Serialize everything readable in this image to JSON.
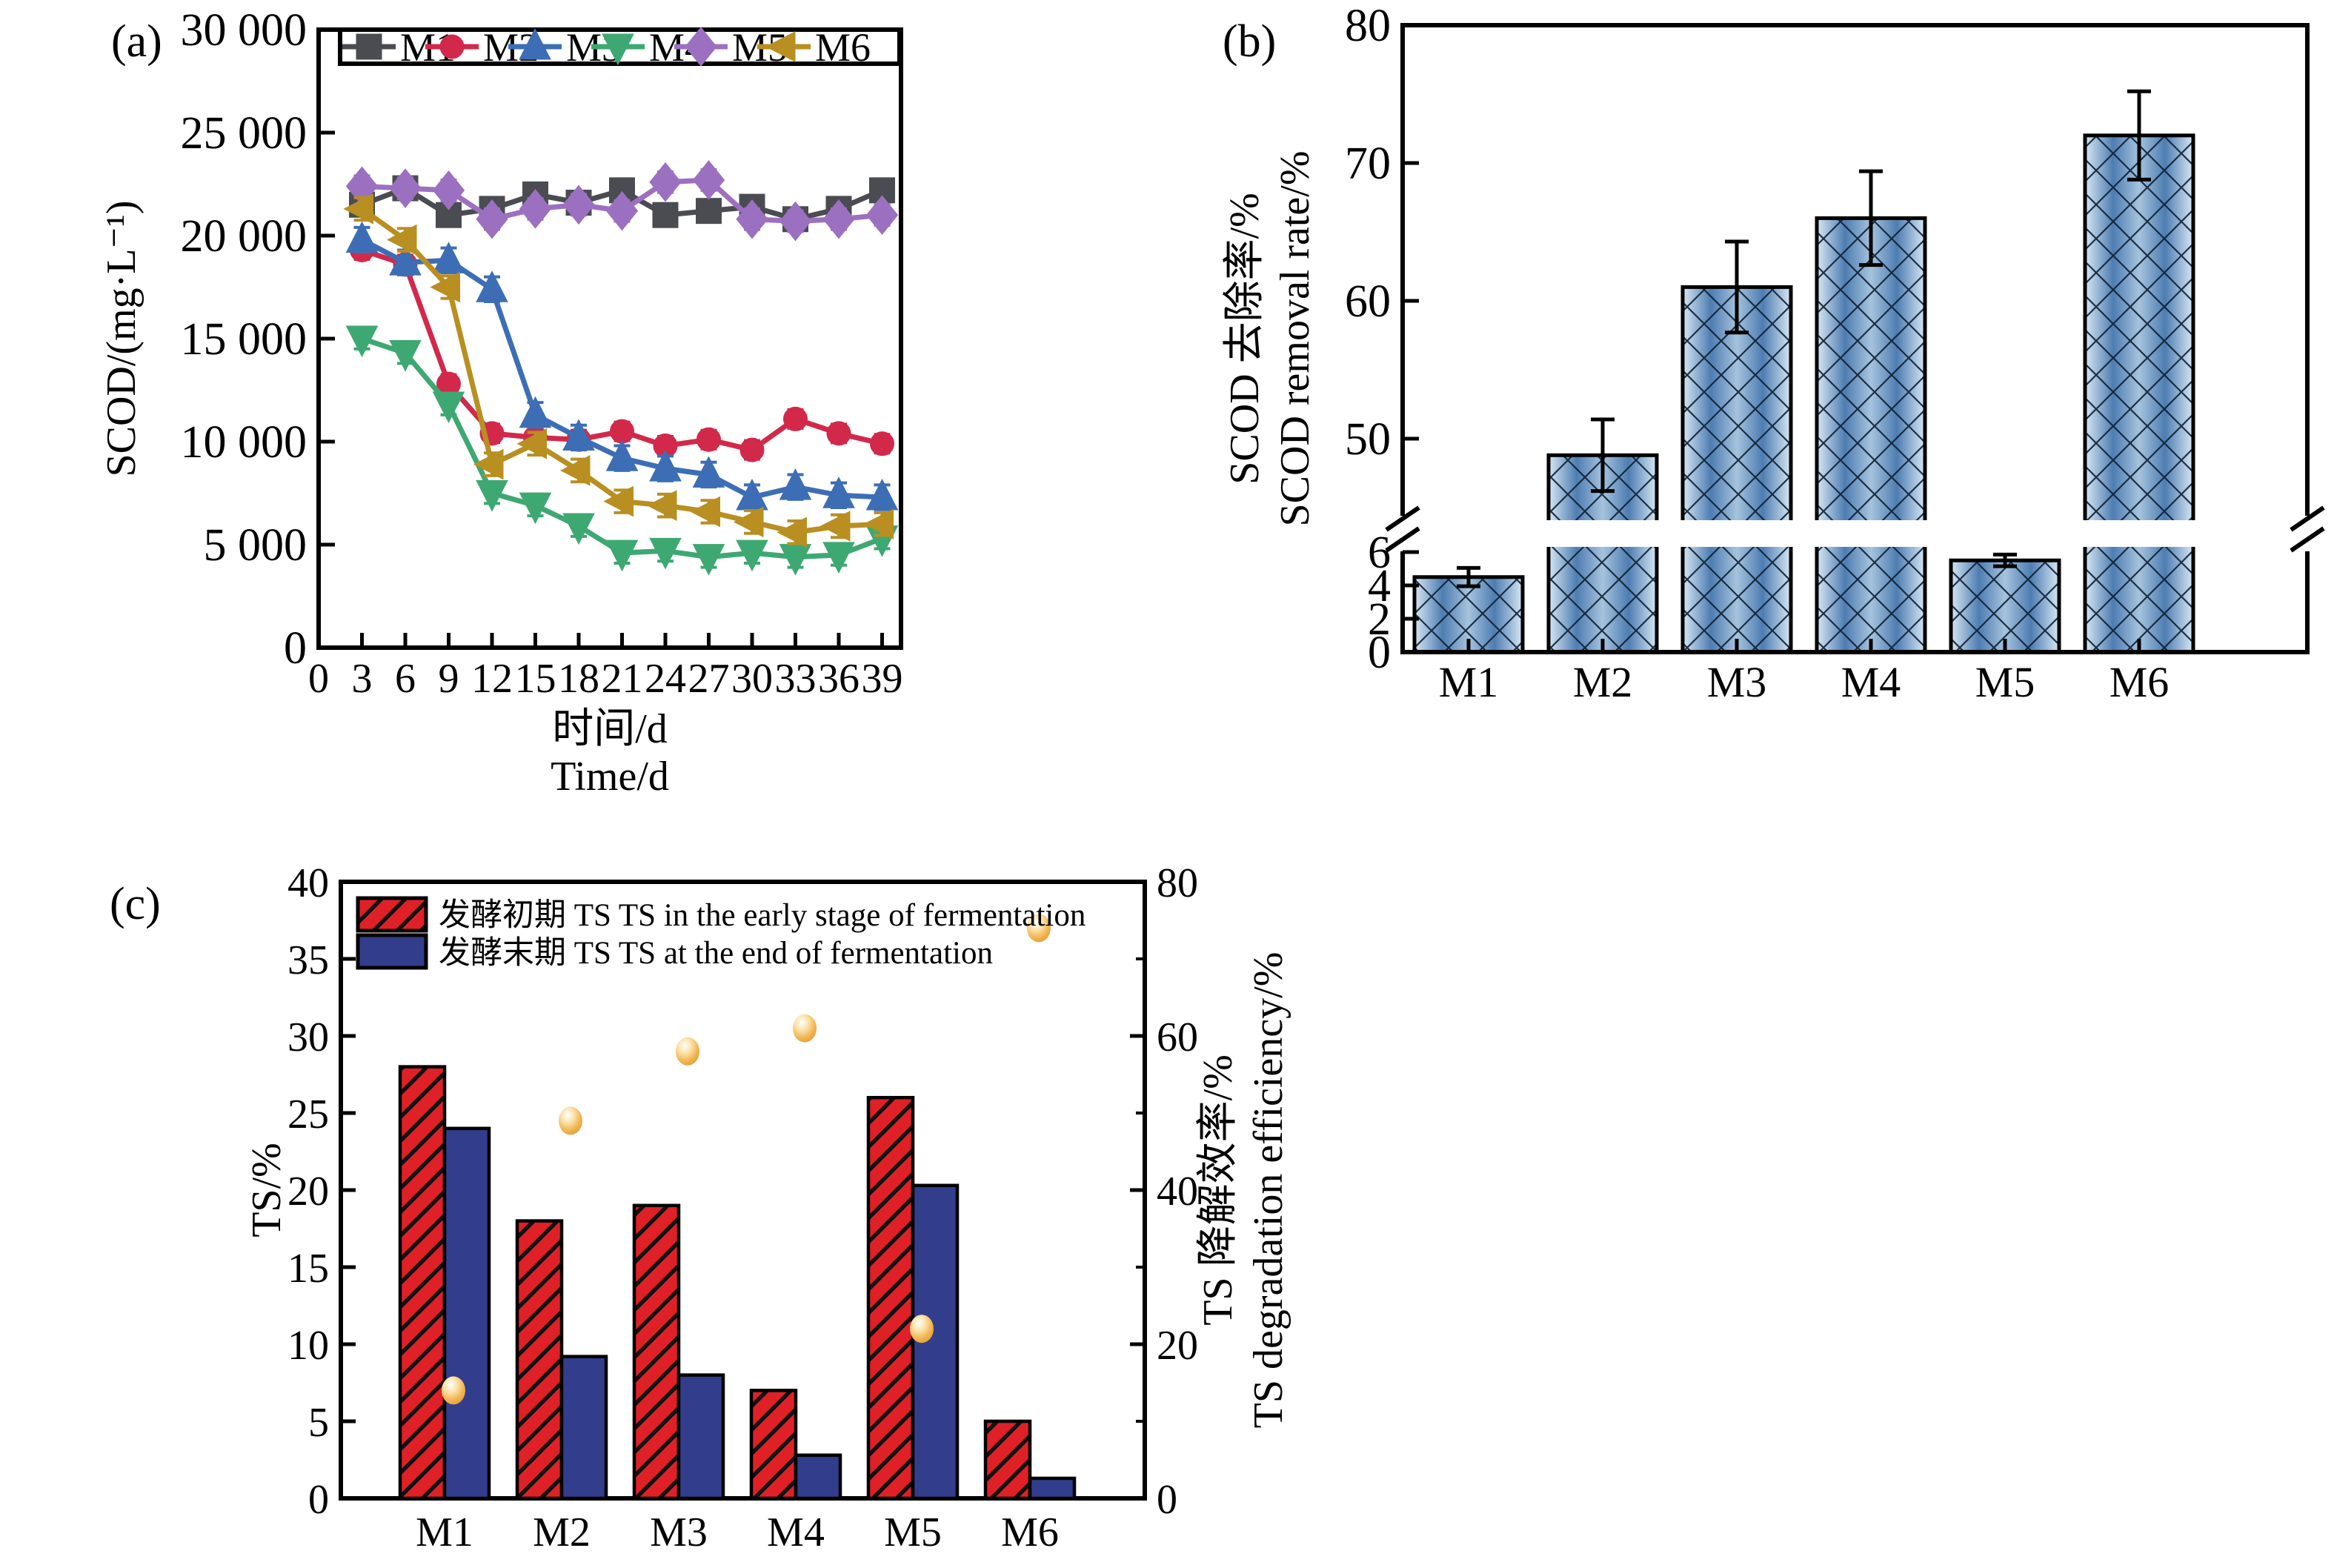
{
  "page_bg": "#ffffff",
  "chart_data": [
    {
      "id": "a",
      "type": "line",
      "panel_tag": "(a)",
      "ylabel": "SCOD/(mg·L⁻¹)",
      "xlabel_zh": "时间/d",
      "xlabel_en": "Time/d",
      "xlim": [
        0,
        40.3
      ],
      "ylim": [
        0,
        30000
      ],
      "x": [
        3,
        6,
        9,
        12,
        15,
        18,
        21,
        24,
        27,
        30,
        33,
        36,
        39
      ],
      "xtick_labels": [
        "0",
        "3",
        "6",
        "9",
        "12",
        "15",
        "18",
        "21",
        "24",
        "27",
        "30",
        "33",
        "36",
        "39"
      ],
      "xtick_values": [
        0,
        3,
        6,
        9,
        12,
        15,
        18,
        21,
        24,
        27,
        30,
        33,
        36,
        39
      ],
      "ytick_labels": [
        "0",
        "5 000",
        "10 000",
        "15 000",
        "20 000",
        "25 000",
        "30 000"
      ],
      "ytick_values": [
        0,
        5000,
        10000,
        15000,
        20000,
        25000,
        30000
      ],
      "grid": false,
      "legend_position": "top-inside-framed",
      "series": [
        {
          "name": "M1",
          "color": "#4b4b52",
          "marker": "square",
          "err": 450,
          "values": [
            21500,
            22300,
            21000,
            21300,
            22000,
            21600,
            22200,
            21000,
            21200,
            21400,
            20800,
            21300,
            22200
          ]
        },
        {
          "name": "M2",
          "color": "#d2294b",
          "marker": "circle",
          "err": 450,
          "values": [
            19300,
            18600,
            12800,
            10400,
            10200,
            10100,
            10500,
            9800,
            10100,
            9600,
            11100,
            10400,
            9900
          ]
        },
        {
          "name": "M3",
          "color": "#3d6eb5",
          "marker": "triangle-up",
          "err": 600,
          "values": [
            19800,
            18700,
            18800,
            17400,
            11300,
            10200,
            9200,
            8700,
            8400,
            7300,
            7800,
            7400,
            7300
          ]
        },
        {
          "name": "M4",
          "color": "#3ea873",
          "marker": "triangle-down",
          "err": 500,
          "values": [
            15000,
            14300,
            11800,
            7500,
            6900,
            5900,
            4600,
            4700,
            4400,
            4600,
            4400,
            4500,
            5300
          ]
        },
        {
          "name": "M5",
          "color": "#9c70c0",
          "marker": "diamond",
          "err": 500,
          "values": [
            22400,
            22300,
            22200,
            20800,
            21300,
            21500,
            21200,
            22600,
            22700,
            20800,
            20700,
            20800,
            21000
          ]
        },
        {
          "name": "M6",
          "color": "#b98f21",
          "marker": "triangle-left",
          "err": 550,
          "values": [
            21300,
            19800,
            17500,
            8900,
            9900,
            8600,
            7100,
            6900,
            6600,
            6100,
            5600,
            5900,
            6000
          ]
        }
      ]
    },
    {
      "id": "b",
      "type": "bar",
      "panel_tag": "(b)",
      "ylabel_zh": "SCOD 去除率/%",
      "ylabel_en": "SCOD removal rate/%",
      "categories": [
        "M1",
        "M2",
        "M3",
        "M4",
        "M5",
        "M6"
      ],
      "values": [
        4.5,
        48.8,
        61.0,
        66.0,
        5.5,
        72.0
      ],
      "errors": [
        0.55,
        2.6,
        3.3,
        3.4,
        0.35,
        3.2
      ],
      "axis_break": {
        "lower_range": [
          0,
          6
        ],
        "lower_tick_labels": [
          "0",
          "2",
          "4",
          "6"
        ],
        "lower_tick_values": [
          0,
          2,
          4,
          6
        ],
        "upper_range": [
          50,
          80
        ],
        "upper_tick_labels": [
          "50",
          "60",
          "70",
          "80"
        ],
        "upper_tick_values": [
          50,
          60,
          70,
          80
        ]
      },
      "bar_color_edge": "#d8e8f4",
      "bar_color_center": "#4e7db2",
      "bar_color_mid": "#a6c3dd",
      "hatch_color": "#0d1f33",
      "grid": false
    },
    {
      "id": "c",
      "type": "bar+scatter",
      "panel_tag": "(c)",
      "ylabel_left": "TS/%",
      "ylabel_right_zh": "TS 降解效率/%",
      "ylabel_right_en": "TS degradation efficiency/%",
      "categories": [
        "M1",
        "M2",
        "M3",
        "M4",
        "M5",
        "M6"
      ],
      "ylim_left": [
        0,
        40
      ],
      "ytick_left_labels": [
        "0",
        "5",
        "10",
        "15",
        "20",
        "25",
        "30",
        "35",
        "40"
      ],
      "ytick_left_values": [
        0,
        5,
        10,
        15,
        20,
        25,
        30,
        35,
        40
      ],
      "ylim_right": [
        0,
        80
      ],
      "ytick_right_labels": [
        "0",
        "20",
        "40",
        "60",
        "80"
      ],
      "ytick_right_values": [
        0,
        20,
        40,
        60,
        80
      ],
      "series": [
        {
          "label": "发酵初期 TS TS in the early stage of fermentation",
          "style": "hatched",
          "color": "#df2127",
          "values": [
            28,
            18,
            19,
            7,
            26,
            5
          ]
        },
        {
          "label": "发酵末期 TS TS at the end of fermentation",
          "style": "solid",
          "color": "#323e8b",
          "values": [
            24,
            9.2,
            8,
            2.8,
            20.3,
            1.3
          ]
        }
      ],
      "points": {
        "name": "TS degradation efficiency",
        "color": "#f2b44e",
        "color_light": "#fbe3ac",
        "color_dark": "#d6902c",
        "axis": "right",
        "values": [
          14,
          49,
          58,
          61,
          22,
          74
        ]
      },
      "grid": false
    }
  ]
}
